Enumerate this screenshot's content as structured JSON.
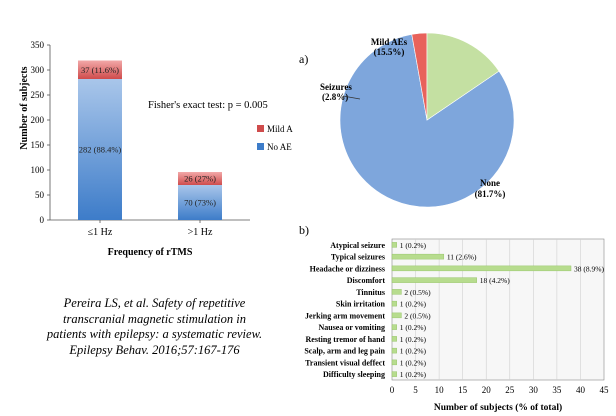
{
  "colors": {
    "blue_light": "#a9c6ea",
    "blue_dark": "#3d7cc9",
    "red_light": "#f2a8a8",
    "red_dark": "#cf4c4c",
    "pie_none": "#7ea6dc",
    "pie_seizures": "#e8625b",
    "pie_mild": "#c4e0a2",
    "hbar_fill": "#b7dc8e",
    "grid": "#d0d0d0",
    "axis": "#555555"
  },
  "chart_data": [
    {
      "type": "bar",
      "stacked": true,
      "categories": [
        "≤1 Hz",
        ">1 Hz"
      ],
      "series": [
        {
          "name": "No AE",
          "values": [
            282,
            70
          ],
          "labels": [
            "282 (88.4%)",
            "70 (73%)"
          ]
        },
        {
          "name": "Mild A",
          "values": [
            37,
            26
          ],
          "labels": [
            "37 (11.6%)",
            "26 (27%)"
          ]
        }
      ],
      "xlabel": "Frequency of rTMS",
      "ylabel": "Number of subjects",
      "ylim": [
        0,
        350
      ],
      "yticks": [
        0,
        50,
        100,
        150,
        200,
        250,
        300,
        350
      ],
      "annotation": "Fisher's exact test: p = 0.005",
      "legend": "right"
    },
    {
      "type": "pie",
      "panel_label": "a)",
      "slices": [
        {
          "name": "None",
          "value": 81.7,
          "label": "(81.7%)"
        },
        {
          "name": "Seizures",
          "value": 2.8,
          "label": "(2.8%)"
        },
        {
          "name": "Mild AEs",
          "value": 15.5,
          "label": "(15.5%)"
        }
      ]
    },
    {
      "type": "bar",
      "orientation": "horizontal",
      "panel_label": "b)",
      "categories": [
        "Atypical seizure",
        "Typical seizures",
        "Headache or dizziness",
        "Discomfort",
        "Tinnitus",
        "Skin irritation",
        "Jerking arm movement",
        "Nausea or vomiting",
        "Resting tremor of hand",
        "Scalp, arm and leg pain",
        "Transient visual deffect",
        "Difficulty sleeping"
      ],
      "values": [
        1,
        11,
        38,
        18,
        2,
        1,
        2,
        1,
        1,
        1,
        1,
        1
      ],
      "labels": [
        "1 (0.2%)",
        "11 (2.6%)",
        "38 (8.9%)",
        "18 (4.2%)",
        "2 (0.5%)",
        "1 (0.2%)",
        "2 (0.5%)",
        "1 (0.2%)",
        "1 (0.2%)",
        "1 (0.2%)",
        "1 (0.2%)",
        "1 (0.2%)"
      ],
      "xlabel": "Number of subjects (% of total)",
      "xlim": [
        0,
        45
      ],
      "xticks": [
        "0",
        "5",
        "10",
        "15",
        "20",
        "25",
        "30",
        "35",
        "40",
        "45"
      ],
      "grid": true
    }
  ],
  "citation": {
    "lines": [
      "Pereira LS, et al. Safety of repetitive",
      "transcranial magnetic stimulation in",
      "patients with epilepsy: a systematic review.",
      "Epilepsy Behav. 2016;57:167-176"
    ]
  }
}
